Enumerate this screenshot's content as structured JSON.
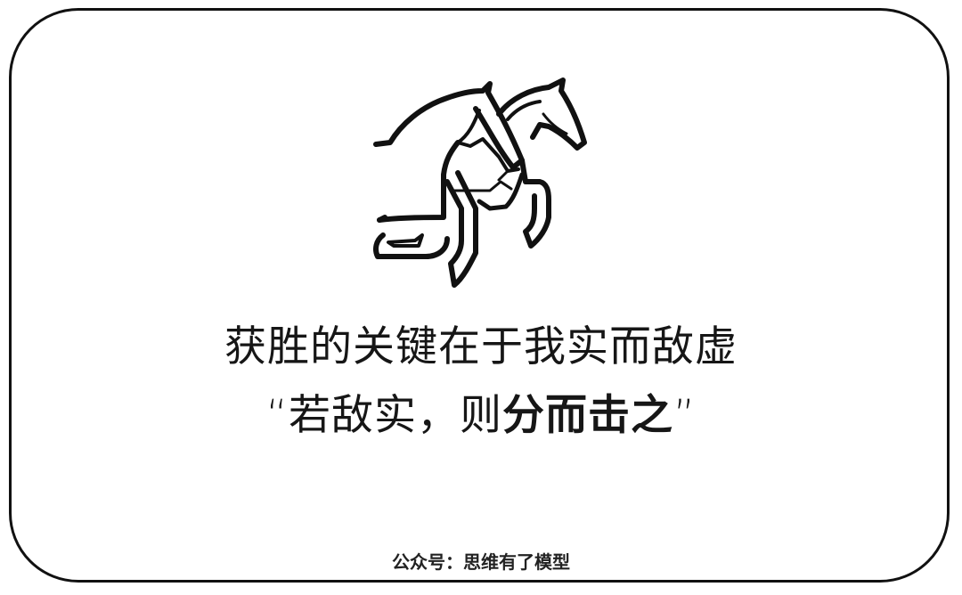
{
  "logo": {
    "icon": "jumping-horse-icon"
  },
  "headline": {
    "text": "获胜的关键在于我实而敌虚"
  },
  "quote": {
    "open_mark": "“",
    "light_text": "若敌实，则",
    "bold_text": "分而击之",
    "close_mark": "”"
  },
  "footer": {
    "text": "公众号：思维有了模型"
  },
  "colors": {
    "stroke": "#111111",
    "background": "#ffffff"
  }
}
